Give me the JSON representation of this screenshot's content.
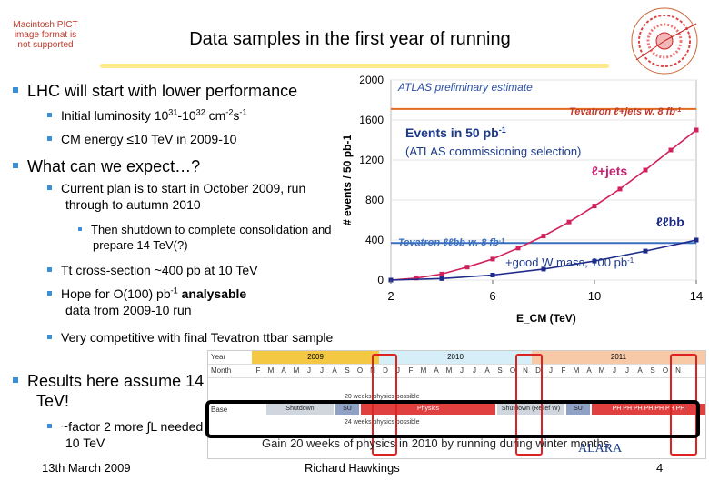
{
  "header": {
    "pict_placeholder": "Macintosh PICT image format is not supported",
    "title": "Data samples in the first year of running"
  },
  "bullets": {
    "b1": "LHC will start with lower performance",
    "b1_lumi_prefix": "Initial luminosity 10",
    "b1_lumi_exp1": "31",
    "b1_lumi_mid": "-10",
    "b1_lumi_exp2": "32",
    "b1_lumi_unit": " cm",
    "b1_lumi_exp3": "-2",
    "b1_lumi_unit2": "s",
    "b1_lumi_exp4": "-1",
    "b1_energy": "CM energy ≤10 TeV in 2009-10",
    "b2": "What can we expect…?",
    "b2_plan": "Current plan is to start in October 2009, run through to autumn 2010",
    "b2_shutdown": "Then shutdown to complete consolidation and prepare 14 TeV(?)",
    "b2_xsec": "Tt cross-section ~400 pb at 10 TeV",
    "b2_hope_prefix": "Hope for O(100) pb",
    "b2_hope_exp": "-1",
    "b2_hope_bold": " analysable",
    "b2_hope_rest": "data  from 2009-10 run",
    "b2_compet": "Very competitive with final Tevatron ttbar sample",
    "b3": "Results here assume 14 TeV!",
    "b3_factor": "~factor 2 more ∫L needed at 10 TeV"
  },
  "chart_data": {
    "type": "line",
    "title": "ATLAS preliminary estimate",
    "xlabel": "E_CM (TeV)",
    "ylabel": "# events / 50 pb-1",
    "xlim": [
      2,
      14
    ],
    "ylim": [
      0,
      2000
    ],
    "x_ticks": [
      "2",
      "6",
      "10",
      "14"
    ],
    "y_ticks": [
      "0",
      "400",
      "800",
      "1200",
      "1600",
      "2000"
    ],
    "series": [
      {
        "name": "ℓ+jets",
        "color": "#d1205a",
        "x": [
          2,
          3,
          4,
          5,
          6,
          7,
          8,
          9,
          10,
          11,
          12,
          13,
          14
        ],
        "y": [
          0,
          20,
          60,
          130,
          210,
          320,
          440,
          580,
          740,
          910,
          1100,
          1300,
          1500
        ]
      },
      {
        "name": "ℓℓbb",
        "color": "#1d2a8a",
        "x": [
          2,
          4,
          6,
          8,
          10,
          12,
          14
        ],
        "y": [
          0,
          15,
          50,
          110,
          190,
          290,
          400
        ]
      }
    ],
    "reference_lines": [
      {
        "label": "Tevatron ℓ+jets w. 8 fb-1",
        "y": 1710,
        "color": "#e26a1c"
      },
      {
        "label": "Tevatron ℓℓbb w. 8 fb-1",
        "y": 370,
        "color": "#3a6fc0"
      }
    ],
    "annotations": {
      "events_title": "Events in 50 pb",
      "events_exp": "-1",
      "events_sub": "(ATLAS commissioning selection)",
      "good_w_mass": "+good W mass, 100 pb",
      "good_w_exp": "-1",
      "ljets_label": "ℓ+jets",
      "llbb_label": "ℓℓbb",
      "tev_ljets": "Tevatron ℓ+jets w. 8 fb",
      "tev_llbb": "Tevatron ℓℓbb w. 8 fb",
      "tev_exp": "-1"
    }
  },
  "timeline": {
    "year_label": "Year",
    "month_label": "Month",
    "base_label": "Base",
    "years": [
      "2009",
      "2010",
      "2011"
    ],
    "months": [
      "F",
      "M",
      "A",
      "M",
      "J",
      "J",
      "A",
      "S",
      "O",
      "N",
      "D",
      "J",
      "F",
      "M",
      "A",
      "M",
      "J",
      "J",
      "A",
      "S",
      "O",
      "N",
      "D",
      "J",
      "F",
      "M",
      "A",
      "M",
      "J",
      "J",
      "A",
      "S",
      "O",
      "N"
    ],
    "row_note1": "20 weeks physics possible",
    "row_note2": "24 weeks physics possible",
    "segments": {
      "shutdown": "Shutdown",
      "su1": "SU",
      "physics": "Physics",
      "shutdown2": "Shutdown (Relief W)",
      "su2": "SU",
      "ph": "PH PH PH PH PH PH PH"
    },
    "gain": "Gain 20 weeks of physics in 2010 by running during winter months",
    "alara": "ALARA"
  },
  "footer": {
    "date": "13th March 2009",
    "author": "Richard Hawkings",
    "page": "4"
  }
}
